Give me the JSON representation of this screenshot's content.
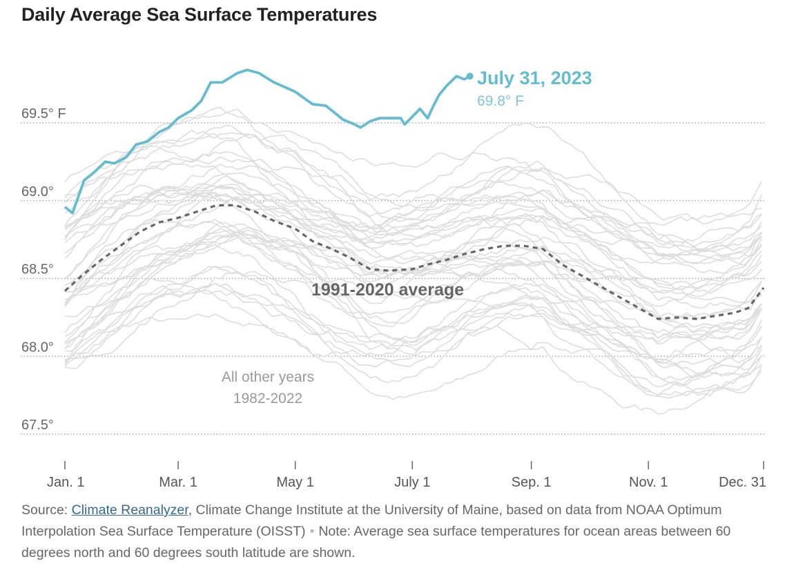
{
  "title": "Daily Average Sea Surface Temperatures",
  "chart_data": {
    "type": "line",
    "title": "Daily Average Sea Surface Temperatures",
    "xlabel": "",
    "ylabel": "",
    "x_ticks": [
      "Jan. 1",
      "Mar. 1",
      "May 1",
      "July 1",
      "Sep. 1",
      "Nov. 1",
      "Dec. 31"
    ],
    "x_tick_days": [
      1,
      60,
      121,
      182,
      244,
      305,
      365
    ],
    "y_ticks": [
      67.5,
      68.0,
      68.5,
      69.0,
      69.5
    ],
    "y_tick_labels": [
      "67.5°",
      "68.0°",
      "68.5°",
      "69.0°",
      "69.5° F"
    ],
    "ylim": [
      67.3,
      69.88
    ],
    "xlim": [
      1,
      365
    ],
    "grid": "horizontal dotted",
    "series": [
      {
        "name": "2023",
        "color": "#63bcd0",
        "x": [
          1,
          5,
          11,
          16,
          22,
          27,
          33,
          38,
          44,
          50,
          55,
          60,
          67,
          72,
          77,
          83,
          91,
          96,
          102,
          110,
          121,
          130,
          137,
          146,
          152,
          155,
          160,
          165,
          170,
          176,
          178,
          182,
          186,
          190,
          193,
          196,
          200,
          205,
          209,
          212
        ],
        "values": [
          68.96,
          68.92,
          69.13,
          69.18,
          69.25,
          69.24,
          69.28,
          69.36,
          69.38,
          69.44,
          69.47,
          69.53,
          69.58,
          69.64,
          69.76,
          69.76,
          69.82,
          69.84,
          69.82,
          69.76,
          69.7,
          69.62,
          69.61,
          69.52,
          69.49,
          69.47,
          69.51,
          69.53,
          69.53,
          69.53,
          69.49,
          69.54,
          69.59,
          69.53,
          69.61,
          69.68,
          69.74,
          69.8,
          69.78,
          69.8
        ]
      },
      {
        "name": "1991-2020 average",
        "color": "#666666",
        "x": [
          1,
          10,
          20,
          30,
          40,
          50,
          60,
          70,
          80,
          90,
          100,
          110,
          121,
          130,
          140,
          150,
          160,
          170,
          182,
          190,
          200,
          210,
          220,
          230,
          240,
          250,
          260,
          270,
          280,
          290,
          300,
          310,
          320,
          330,
          340,
          350,
          357,
          365
        ],
        "values": [
          68.42,
          68.52,
          68.62,
          68.71,
          68.8,
          68.86,
          68.89,
          68.93,
          68.97,
          68.97,
          68.93,
          68.87,
          68.82,
          68.74,
          68.69,
          68.63,
          68.56,
          68.55,
          68.56,
          68.59,
          68.62,
          68.66,
          68.69,
          68.71,
          68.71,
          68.69,
          68.59,
          68.52,
          68.45,
          68.38,
          68.31,
          68.24,
          68.25,
          68.24,
          68.26,
          68.28,
          68.31,
          68.44
        ]
      }
    ],
    "other_years": {
      "label_line1": "All other years",
      "label_line2": "1982-2022",
      "color": "#dddddd"
    },
    "annotations": {
      "last_date": "July 31, 2023",
      "last_value": "69.8° F",
      "average_label": "1991-2020 average"
    }
  },
  "source": {
    "prefix": "Source: ",
    "link_text": "Climate Reanalyzer",
    "rest": ", Climate Change Institute at the University of Maine, based on data from NOAA Optimum Interpolation Sea Surface Temperature (OISST)",
    "separator": "•",
    "note": "Note: Average sea surface temperatures for ocean areas between 60 degrees north and 60 degrees south latitude are shown."
  }
}
